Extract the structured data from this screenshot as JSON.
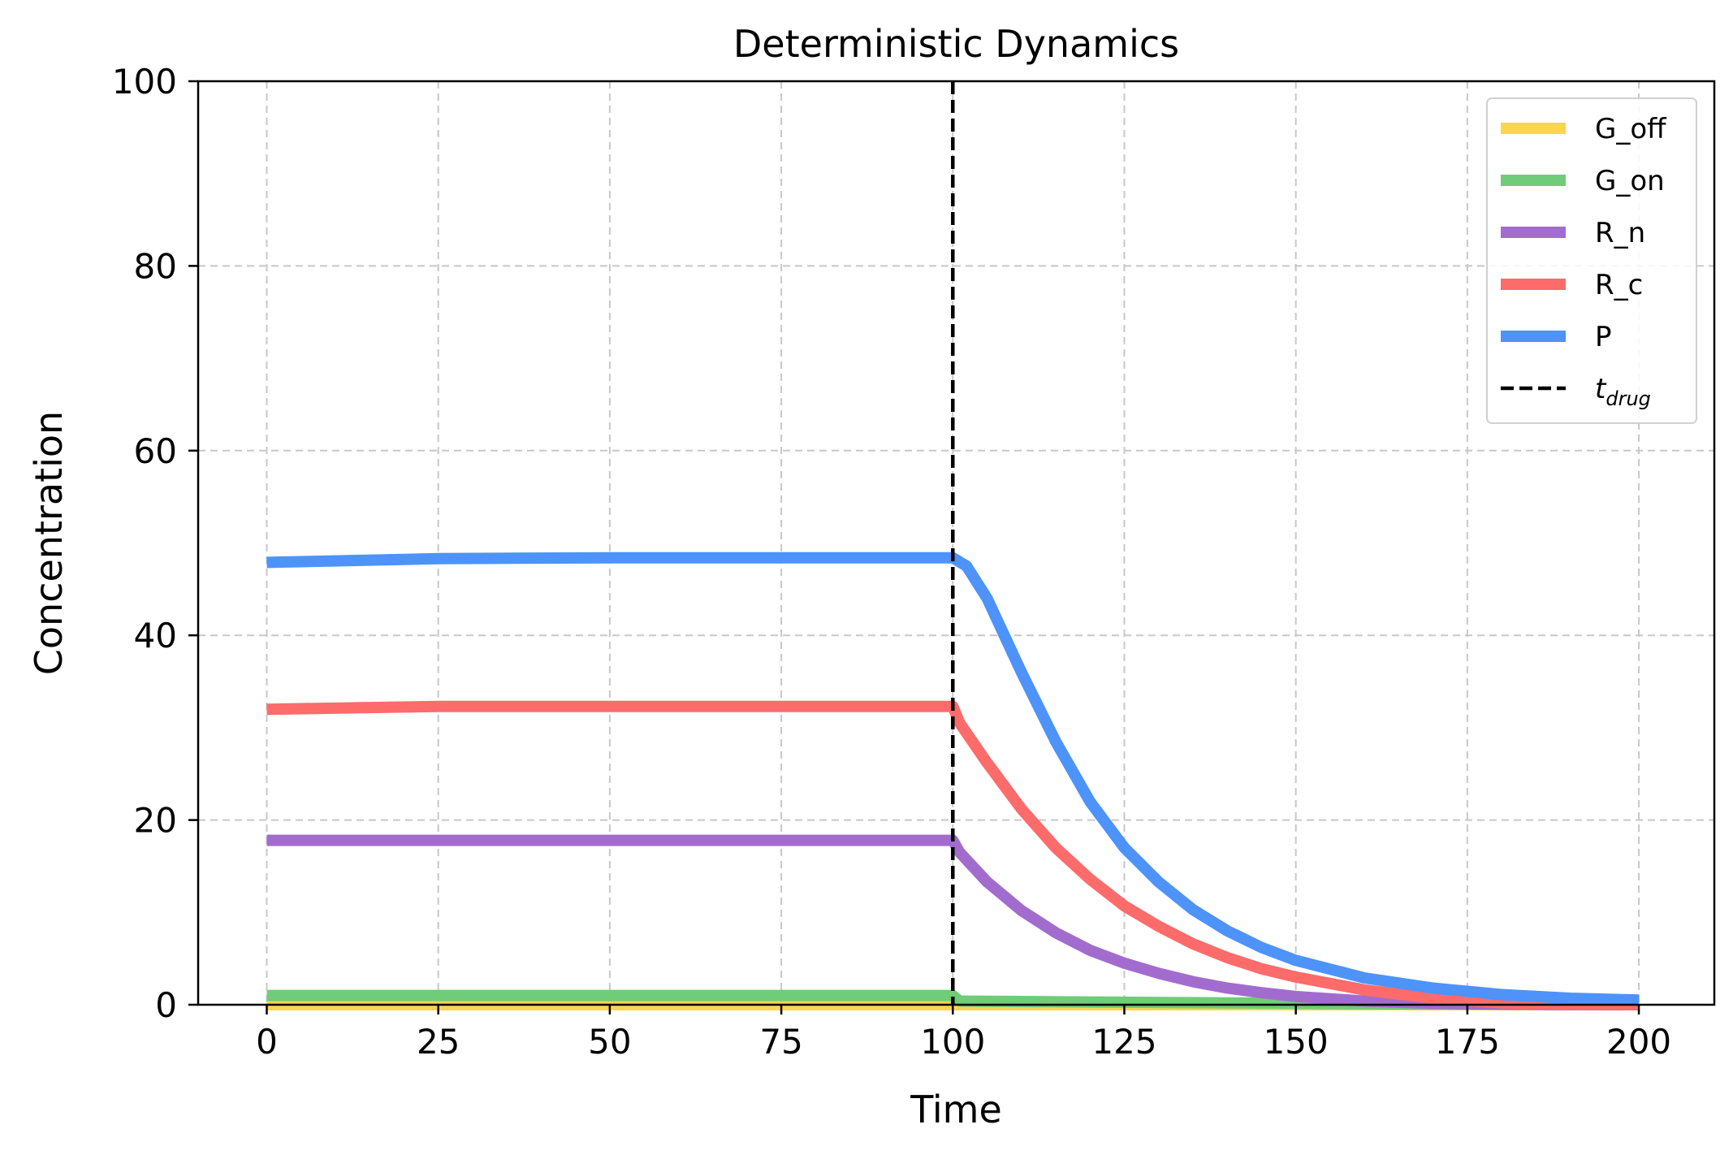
{
  "chart_data": {
    "type": "line",
    "title": "Deterministic Dynamics",
    "xlabel": "Time",
    "ylabel": "Concentration",
    "xlim": [
      -10,
      211
    ],
    "ylim": [
      0,
      100
    ],
    "xticks": [
      0,
      25,
      50,
      75,
      100,
      125,
      150,
      175,
      200
    ],
    "yticks": [
      0,
      20,
      40,
      60,
      80,
      100
    ],
    "grid": true,
    "legend_position": "top-right",
    "drug_time": 100,
    "drug_label": "t_drug",
    "drug_label_main": "t",
    "drug_label_sub": "drug",
    "series": [
      {
        "name": "G_off",
        "color": "#fdd649",
        "x": [
          0,
          100,
          101,
          200
        ],
        "y": [
          0,
          0,
          0,
          0
        ]
      },
      {
        "name": "G_on",
        "color": "#6fcc78",
        "x": [
          0,
          100,
          101,
          120,
          140,
          160,
          180,
          200
        ],
        "y": [
          1.0,
          1.0,
          0.4,
          0.3,
          0.2,
          0.1,
          0.05,
          0.02
        ]
      },
      {
        "name": "R_n",
        "color": "#a26ccf",
        "x": [
          0,
          25,
          50,
          75,
          100,
          101,
          105,
          110,
          115,
          120,
          125,
          130,
          135,
          140,
          145,
          150,
          160,
          170,
          180,
          190,
          200
        ],
        "y": [
          17.8,
          17.8,
          17.8,
          17.8,
          17.8,
          16.5,
          13.3,
          10.2,
          7.8,
          5.9,
          4.5,
          3.4,
          2.5,
          1.8,
          1.3,
          0.9,
          0.4,
          0.15,
          0.05,
          0.01,
          0
        ]
      },
      {
        "name": "R_c",
        "color": "#fd6b6b",
        "x": [
          0,
          25,
          50,
          75,
          100,
          101,
          105,
          110,
          115,
          120,
          125,
          130,
          135,
          140,
          145,
          150,
          160,
          170,
          180,
          190,
          200
        ],
        "y": [
          32.0,
          32.3,
          32.3,
          32.3,
          32.3,
          30.5,
          26.2,
          21.2,
          17.0,
          13.6,
          10.7,
          8.5,
          6.6,
          5.1,
          3.9,
          3.0,
          1.6,
          0.7,
          0.2,
          0.05,
          0
        ]
      },
      {
        "name": "P",
        "color": "#4d93fa",
        "x": [
          0,
          25,
          50,
          75,
          100,
          102,
          105,
          110,
          115,
          120,
          125,
          130,
          135,
          140,
          145,
          150,
          160,
          170,
          180,
          190,
          200
        ],
        "y": [
          47.9,
          48.3,
          48.4,
          48.4,
          48.4,
          47.5,
          44.0,
          36.0,
          28.5,
          22.0,
          17.0,
          13.3,
          10.3,
          8.0,
          6.2,
          4.8,
          2.9,
          1.8,
          1.1,
          0.7,
          0.5
        ]
      }
    ]
  }
}
